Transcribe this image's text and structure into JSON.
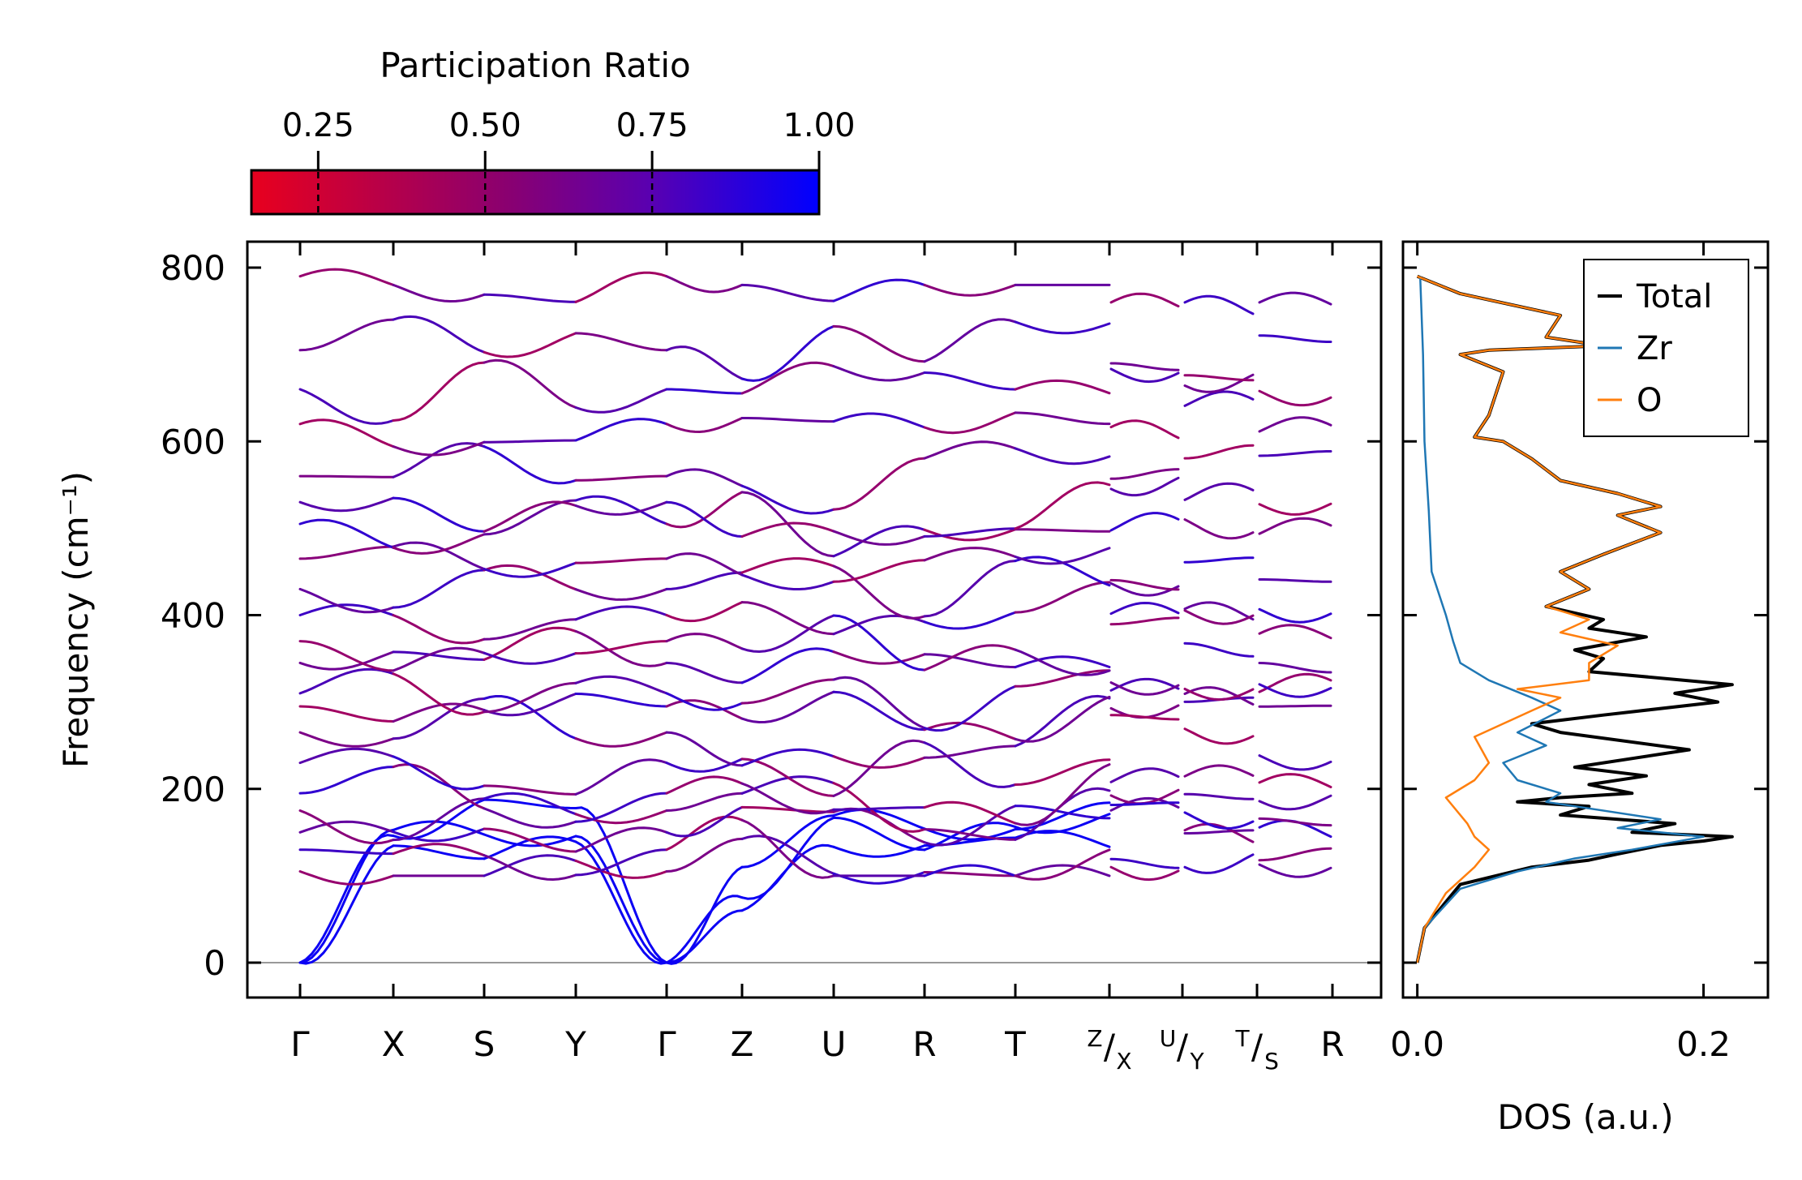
{
  "chart_data": [
    {
      "type": "line",
      "panel": "phonon-band-structure",
      "ylabel": "Frequency (cm⁻¹)",
      "ylim": [
        -40,
        830
      ],
      "yticks": [
        0,
        200,
        400,
        600,
        800
      ],
      "kpath_labels": [
        "Γ",
        "X",
        "S",
        "Y",
        "Γ",
        "Z",
        "U",
        "R",
        "T",
        "Z/X",
        "U/Y",
        "T/S",
        "R"
      ],
      "kpath_labels_display": {
        "main": [
          "Γ",
          "X",
          "S",
          "Y",
          "Γ",
          "Z",
          "U",
          "R",
          "T",
          "",
          "",
          "",
          "R"
        ],
        "split_top": [
          "Z",
          "U",
          "T"
        ],
        "split_sub": [
          "X",
          "Y",
          "S"
        ]
      },
      "segment_breaks_after": [
        "T",
        "Z/X",
        "U/Y",
        "T/S"
      ],
      "colorbar": {
        "label": "Participation Ratio",
        "ticks": [
          "0.25",
          "0.50",
          "0.75",
          "1.00"
        ],
        "range": [
          0.15,
          1.0
        ],
        "color_low": "#e8001e",
        "color_high": "#0000ff"
      },
      "branches_at_gamma_cm1": [
        0,
        0,
        0,
        105,
        130,
        150,
        175,
        195,
        230,
        265,
        295,
        310,
        345,
        370,
        400,
        430,
        465,
        505,
        530,
        560,
        620,
        660,
        705,
        790
      ],
      "acoustic_modes_at_zone_boundary_cm1": {
        "X": [
          135,
          150,
          165
        ],
        "Z": [
          60,
          75,
          110
        ]
      },
      "max_frequency_cm1": 790
    },
    {
      "type": "line",
      "panel": "density-of-states",
      "xlabel": "DOS (a.u.)",
      "xlim": [
        -0.01,
        0.245
      ],
      "xticks": [
        "0.0",
        "0.2"
      ],
      "ylim": [
        -40,
        830
      ],
      "legend": [
        "Total",
        "Zr",
        "O"
      ],
      "legend_position": "top-right",
      "series": [
        {
          "name": "Total",
          "color": "#000000",
          "points": [
            [
              0,
              0
            ],
            [
              0.005,
              40
            ],
            [
              0.03,
              90
            ],
            [
              0.08,
              110
            ],
            [
              0.12,
              118
            ],
            [
              0.14,
              125
            ],
            [
              0.17,
              135
            ],
            [
              0.2,
              140
            ],
            [
              0.22,
              145
            ],
            [
              0.15,
              150
            ],
            [
              0.18,
              160
            ],
            [
              0.1,
              170
            ],
            [
              0.12,
              180
            ],
            [
              0.07,
              185
            ],
            [
              0.1,
              190
            ],
            [
              0.15,
              195
            ],
            [
              0.12,
              205
            ],
            [
              0.16,
              215
            ],
            [
              0.11,
              225
            ],
            [
              0.19,
              245
            ],
            [
              0.1,
              265
            ],
            [
              0.08,
              275
            ],
            [
              0.13,
              285
            ],
            [
              0.21,
              300
            ],
            [
              0.18,
              310
            ],
            [
              0.22,
              320
            ],
            [
              0.12,
              335
            ],
            [
              0.13,
              350
            ],
            [
              0.11,
              360
            ],
            [
              0.16,
              375
            ],
            [
              0.12,
              385
            ],
            [
              0.13,
              395
            ],
            [
              0.09,
              410
            ],
            [
              0.12,
              430
            ],
            [
              0.1,
              450
            ],
            [
              0.13,
              470
            ],
            [
              0.17,
              495
            ],
            [
              0.14,
              515
            ],
            [
              0.17,
              525
            ],
            [
              0.14,
              540
            ],
            [
              0.1,
              555
            ],
            [
              0.08,
              580
            ],
            [
              0.06,
              600
            ],
            [
              0.04,
              605
            ],
            [
              0.05,
              630
            ],
            [
              0.06,
              680
            ],
            [
              0.03,
              700
            ],
            [
              0.05,
              705
            ],
            [
              0.13,
              710
            ],
            [
              0.09,
              720
            ],
            [
              0.1,
              745
            ],
            [
              0.03,
              770
            ],
            [
              0.0,
              790
            ]
          ]
        },
        {
          "name": "Zr",
          "color": "#1f77b4",
          "points": [
            [
              0,
              0
            ],
            [
              0.005,
              40
            ],
            [
              0.03,
              85
            ],
            [
              0.07,
              105
            ],
            [
              0.11,
              120
            ],
            [
              0.15,
              130
            ],
            [
              0.2,
              145
            ],
            [
              0.14,
              155
            ],
            [
              0.17,
              165
            ],
            [
              0.09,
              185
            ],
            [
              0.1,
              195
            ],
            [
              0.07,
              210
            ],
            [
              0.06,
              230
            ],
            [
              0.09,
              250
            ],
            [
              0.07,
              265
            ],
            [
              0.1,
              290
            ],
            [
              0.08,
              305
            ],
            [
              0.05,
              325
            ],
            [
              0.03,
              345
            ],
            [
              0.025,
              370
            ],
            [
              0.02,
              400
            ],
            [
              0.01,
              450
            ],
            [
              0.008,
              520
            ],
            [
              0.005,
              600
            ],
            [
              0.004,
              700
            ],
            [
              0.002,
              790
            ]
          ]
        },
        {
          "name": "O",
          "color": "#ff7f0e",
          "points": [
            [
              0,
              0
            ],
            [
              0.005,
              40
            ],
            [
              0.02,
              80
            ],
            [
              0.04,
              110
            ],
            [
              0.05,
              130
            ],
            [
              0.04,
              145
            ],
            [
              0.035,
              160
            ],
            [
              0.02,
              190
            ],
            [
              0.04,
              210
            ],
            [
              0.05,
              230
            ],
            [
              0.04,
              260
            ],
            [
              0.06,
              275
            ],
            [
              0.08,
              290
            ],
            [
              0.1,
              305
            ],
            [
              0.07,
              315
            ],
            [
              0.12,
              325
            ],
            [
              0.12,
              345
            ],
            [
              0.14,
              365
            ],
            [
              0.1,
              380
            ],
            [
              0.12,
              395
            ],
            [
              0.09,
              410
            ],
            [
              0.12,
              430
            ],
            [
              0.1,
              450
            ],
            [
              0.13,
              470
            ],
            [
              0.17,
              495
            ],
            [
              0.14,
              515
            ],
            [
              0.17,
              525
            ],
            [
              0.14,
              540
            ],
            [
              0.1,
              555
            ],
            [
              0.08,
              580
            ],
            [
              0.06,
              600
            ],
            [
              0.04,
              605
            ],
            [
              0.05,
              630
            ],
            [
              0.06,
              680
            ],
            [
              0.03,
              700
            ],
            [
              0.05,
              705
            ],
            [
              0.13,
              710
            ],
            [
              0.09,
              720
            ],
            [
              0.1,
              745
            ],
            [
              0.03,
              770
            ],
            [
              0.0,
              790
            ]
          ]
        }
      ]
    }
  ]
}
